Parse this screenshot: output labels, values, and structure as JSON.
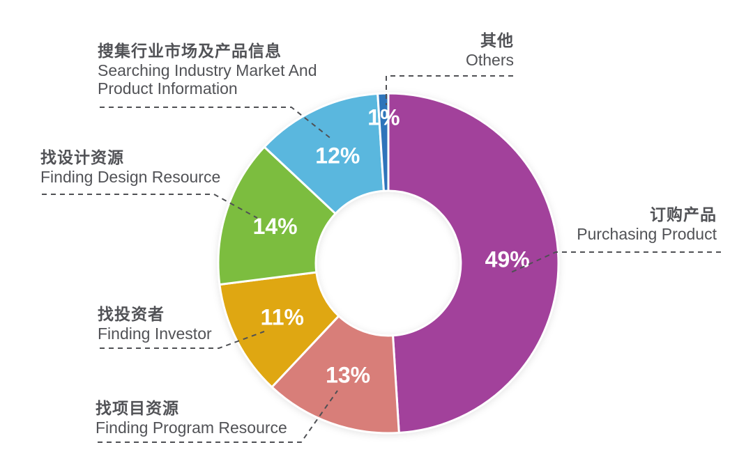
{
  "page": {
    "background": "#ffffff",
    "text_color": "#515256",
    "leader_line_color": "#4f5054"
  },
  "chart_data": {
    "type": "pie",
    "variant": "donut",
    "title": "",
    "legend_position": "none",
    "unit": "%",
    "total": 100,
    "value_label_color": "#ffffff",
    "slices": [
      {
        "name": "purchasing-product",
        "label_zh": "订购产品",
        "label_en": "Purchasing Product",
        "value": 49,
        "pct_label": "49%",
        "color": "#a2419b"
      },
      {
        "name": "finding-program-resource",
        "label_zh": "找项目资源",
        "label_en": "Finding Program Resource",
        "value": 13,
        "pct_label": "13%",
        "color": "#d87e79"
      },
      {
        "name": "finding-investor",
        "label_zh": "找投资者",
        "label_en": "Finding Investor",
        "value": 11,
        "pct_label": "11%",
        "color": "#dfa712"
      },
      {
        "name": "finding-design-resource",
        "label_zh": "找设计资源",
        "label_en": "Finding Design Resource",
        "value": 14,
        "pct_label": "14%",
        "color": "#7cbd3f"
      },
      {
        "name": "searching-industry-market",
        "label_zh": "搜集行业市场及产品信息",
        "label_en": "Searching Industry Market And Product Information",
        "value": 12,
        "pct_label": "12%",
        "color": "#5ab7de"
      },
      {
        "name": "others",
        "label_zh": "其他",
        "label_en": "Others",
        "value": 1,
        "pct_label": "1%",
        "color": "#2e74ba"
      }
    ]
  }
}
